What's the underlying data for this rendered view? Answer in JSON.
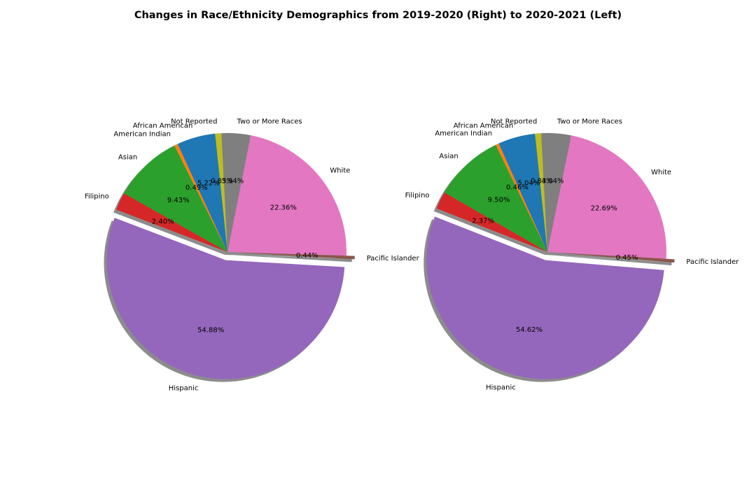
{
  "title": "Changes in Race/Ethnicity Demographics from 2019-2020 (Right) to 2020-2021 (Left)",
  "chart_data": [
    {
      "type": "pie",
      "start_angle_deg": 96,
      "explode_fraction": 0.07,
      "shadow": true,
      "labels": [
        "African American",
        "American Indian",
        "Asian",
        "Filipino",
        "Hispanic",
        "Pacific Islander",
        "White",
        "Two or More Races",
        "Not Reported"
      ],
      "values": [
        5.22,
        0.49,
        9.43,
        2.4,
        54.88,
        0.44,
        22.36,
        3.94,
        0.85
      ],
      "value_labels": [
        "5.22%",
        "0.49%",
        "9.43%",
        "2.40%",
        "54.88%",
        "0.44%",
        "22.36%",
        "3.94%",
        "0.85%"
      ],
      "exploded": [
        false,
        false,
        false,
        false,
        true,
        true,
        false,
        false,
        false
      ],
      "colors": [
        "#1f77b4",
        "#ff7f0e",
        "#2ca02c",
        "#d62728",
        "#9467bd",
        "#8c564b",
        "#e377c2",
        "#7f7f7f",
        "#bcbd22"
      ]
    },
    {
      "type": "pie",
      "start_angle_deg": 96,
      "explode_fraction": 0.07,
      "shadow": true,
      "labels": [
        "African American",
        "American Indian",
        "Asian",
        "Filipino",
        "Hispanic",
        "Pacific Islander",
        "White",
        "Two or More Races",
        "Not Reported"
      ],
      "values": [
        5.04,
        0.46,
        9.5,
        2.37,
        54.62,
        0.45,
        22.69,
        4.04,
        0.83
      ],
      "value_labels": [
        "5.04%",
        "0.46%",
        "9.50%",
        "2.37%",
        "54.62%",
        "0.45%",
        "22.69%",
        "4.04%",
        "0.83%"
      ],
      "exploded": [
        false,
        false,
        false,
        false,
        true,
        true,
        false,
        false,
        false
      ],
      "colors": [
        "#1f77b4",
        "#ff7f0e",
        "#2ca02c",
        "#d62728",
        "#9467bd",
        "#8c564b",
        "#e377c2",
        "#7f7f7f",
        "#bcbd22"
      ]
    }
  ]
}
